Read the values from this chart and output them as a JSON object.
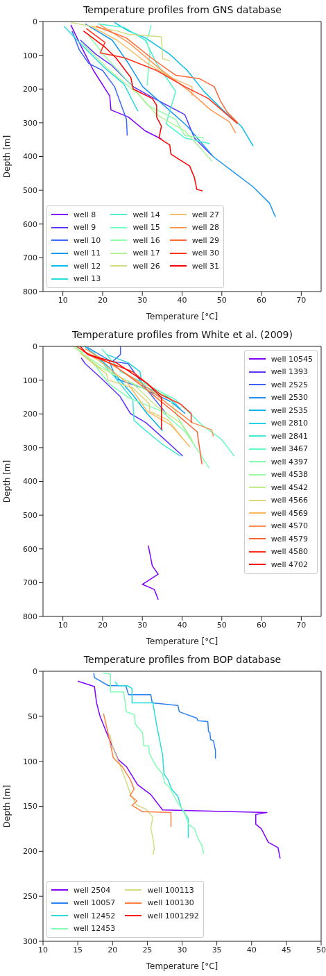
{
  "chart_data": [
    {
      "type": "line",
      "title": "Temperature profiles from GNS database",
      "xlabel": "Temperature [°C]",
      "ylabel": "Depth [m]",
      "xlim": [
        5,
        75
      ],
      "xticks": [
        10,
        20,
        30,
        40,
        50,
        60,
        70
      ],
      "ylim": [
        800,
        0
      ],
      "yticks": [
        0,
        100,
        200,
        300,
        400,
        500,
        600,
        700,
        800
      ],
      "legend": "bottom left",
      "line_style": "solid",
      "series": [
        {
          "name": "well 8",
          "color": "#8000ff",
          "x": [
            12.0,
            14.7,
            17.7,
            21.8,
            22.1,
            26.5,
            30.7,
            34.8
          ],
          "values": [
            10,
            76,
            145,
            221,
            262,
            283,
            324,
            348
          ]
        },
        {
          "name": "well 9",
          "color": "#5e35fe",
          "x": [
            14.4,
            18.3,
            22.4,
            27.7,
            33.0,
            40.7,
            43.1,
            47.5
          ],
          "values": [
            55,
            97,
            131,
            193,
            228,
            276,
            345,
            397
          ]
        },
        {
          "name": "well 10",
          "color": "#3b68f9",
          "x": [
            12.3,
            14.1,
            16.5,
            20.0,
            23.0,
            26.0,
            26.2
          ],
          "values": [
            28,
            83,
            124,
            145,
            193,
            290,
            338
          ]
        },
        {
          "name": "well 11",
          "color": "#1996f3",
          "x": [
            15.6,
            22.4,
            26.5,
            30.1,
            35.4,
            41.3,
            47.8,
            53.2,
            57.9,
            62.0,
            63.5
          ],
          "values": [
            7,
            55,
            124,
            193,
            248,
            310,
            400,
            448,
            490,
            538,
            579
          ]
        },
        {
          "name": "well 12",
          "color": "#08bde9",
          "x": [
            23.0,
            26.5,
            30.7,
            36.9,
            41.3,
            45.5,
            50.2,
            54.9,
            57.9
          ],
          "values": [
            3,
            28,
            48,
            97,
            145,
            207,
            262,
            310,
            369
          ]
        },
        {
          "name": "well 13",
          "color": "#2adddd",
          "x": [
            10.3,
            14.7,
            20.6,
            25.4,
            28.9
          ],
          "values": [
            14,
            69,
            138,
            186,
            266
          ]
        },
        {
          "name": "well 14",
          "color": "#4cf2ce",
          "x": [
            18.8,
            25.4,
            30.7,
            33.6,
            36.0,
            38.4,
            36.0,
            40.7,
            47.0
          ],
          "values": [
            7,
            17,
            55,
            124,
            166,
            207,
            303,
            345,
            362
          ]
        },
        {
          "name": "well 15",
          "color": "#6efebe",
          "x": [
            32.2,
            31.6,
            31.0,
            31.9,
            31.2
          ],
          "values": [
            10,
            41,
            55,
            90,
            190
          ]
        },
        {
          "name": "well 16",
          "color": "#90feab",
          "x": [
            16.5,
            20.6,
            26.5,
            31.3,
            38.4,
            40.7,
            45.5
          ],
          "values": [
            41,
            103,
            179,
            248,
            290,
            338,
            345
          ]
        },
        {
          "name": "well 17",
          "color": "#b2f296",
          "x": [
            14.7,
            21.8,
            29.5,
            33.6,
            40.7,
            44.9,
            47.5
          ],
          "values": [
            62,
            145,
            221,
            276,
            324,
            379,
            414
          ]
        },
        {
          "name": "well 26",
          "color": "#d4dd80",
          "x": [
            12.0,
            23.6,
            26.5,
            34.8,
            35.1,
            36.9
          ],
          "values": [
            3,
            28,
            38,
            45,
            110,
            117
          ]
        },
        {
          "name": "well 27",
          "color": "#f6bd68",
          "x": [
            17.1,
            23.6,
            31.3,
            37.2,
            42.5,
            42.5
          ],
          "values": [
            14,
            55,
            124,
            166,
            193,
            221
          ]
        },
        {
          "name": "well 28",
          "color": "#ff964f",
          "x": [
            19.4,
            26.5,
            34.2,
            41.9,
            47.2,
            51.9,
            53.5
          ],
          "values": [
            10,
            62,
            138,
            207,
            262,
            297,
            331
          ]
        },
        {
          "name": "well 29",
          "color": "#ff6835",
          "x": [
            18.3,
            25.9,
            32.5,
            38.4,
            44.3,
            48.1,
            49.6,
            51.4,
            54.0
          ],
          "values": [
            14,
            48,
            110,
            159,
            169,
            193,
            234,
            269,
            300
          ]
        },
        {
          "name": "well 30",
          "color": "#ff351b",
          "x": [
            15.9,
            20.6,
            19.4,
            25.4,
            33.6,
            40.7,
            46.6,
            54.0
          ],
          "values": [
            21,
            62,
            93,
            107,
            145,
            193,
            228,
            303
          ]
        },
        {
          "name": "well 31",
          "color": "#ff0000",
          "x": [
            15.2,
            20.6,
            23.3,
            27.1,
            27.7,
            32.5,
            33.6,
            33.6,
            34.8,
            34.2,
            36.9,
            37.2,
            41.9,
            43.1,
            43.7,
            45.2
          ],
          "values": [
            28,
            76,
            107,
            166,
            200,
            228,
            248,
            283,
            310,
            345,
            366,
            393,
            428,
            462,
            497,
            502
          ]
        }
      ]
    },
    {
      "type": "line",
      "title": "Temperature profiles from White et al. (2009)",
      "xlabel": "Temperature [°C]",
      "ylabel": "Depth [m]",
      "xlim": [
        5,
        75
      ],
      "xticks": [
        10,
        20,
        30,
        40,
        50,
        60,
        70
      ],
      "ylim": [
        800,
        0
      ],
      "yticks": [
        0,
        100,
        200,
        300,
        400,
        500,
        600,
        700,
        800
      ],
      "legend": "top right",
      "line_style": "solid",
      "series": [
        {
          "name": "well 10545",
          "color": "#8000ff",
          "x": [
            31.5,
            32,
            32.5,
            34,
            30,
            33,
            34
          ],
          "values": [
            590,
            620,
            650,
            675,
            705,
            720,
            750
          ]
        },
        {
          "name": "well 1393",
          "color": "#6032fe",
          "x": [
            14.6,
            15.6,
            19.8,
            24.3,
            27.0,
            30.9,
            34.8,
            40.2
          ],
          "values": [
            34,
            51,
            96,
            147,
            199,
            226,
            267,
            325
          ]
        },
        {
          "name": "well 2525",
          "color": "#4062fa",
          "x": [
            24.5,
            24.5,
            22.5,
            26.4,
            30.6,
            36.0
          ],
          "values": [
            0,
            24,
            45,
            51,
            120,
            199
          ]
        },
        {
          "name": "well 2530",
          "color": "#208ef4",
          "x": [
            16.2,
            21.6,
            23.4,
            30.0,
            37.2,
            40.8
          ],
          "values": [
            3,
            41,
            96,
            123,
            164,
            199
          ]
        },
        {
          "name": "well 2535",
          "color": "#00b5eb",
          "x": [
            15.6,
            21.6,
            27.6,
            31.2,
            35.1
          ],
          "values": [
            0,
            62,
            144,
            199,
            250
          ]
        },
        {
          "name": "well 2810",
          "color": "#20d4e1",
          "x": [
            21.0,
            26.4,
            29.4,
            30.0,
            36.6,
            39.6
          ],
          "values": [
            24,
            48,
            75,
            116,
            151,
            185
          ]
        },
        {
          "name": "well 2841",
          "color": "#40ebd4",
          "x": [
            17.4,
            23.4,
            27.6,
            27.9,
            30.6,
            34.8,
            39.6
          ],
          "values": [
            14,
            96,
            158,
            219,
            247,
            288,
            325
          ]
        },
        {
          "name": "well 3467",
          "color": "#60fac5",
          "x": [
            19.8,
            24.6,
            30.6,
            38.4,
            45.0,
            49.8,
            51.6,
            53.1
          ],
          "values": [
            7,
            75,
            110,
            158,
            233,
            274,
            301,
            325
          ]
        },
        {
          "name": "well 4397",
          "color": "#80ffb4",
          "x": [
            13.2,
            18.0,
            21.6,
            26.4,
            34.8,
            40.8,
            44.4,
            46.8
          ],
          "values": [
            0,
            55,
            110,
            151,
            192,
            253,
            315,
            360
          ]
        },
        {
          "name": "well 4538",
          "color": "#a0faa2",
          "x": [
            15.6,
            22.8,
            31.2,
            36.6,
            39.0,
            42.0,
            43.2
          ],
          "values": [
            27,
            82,
            130,
            147,
            212,
            267,
            295
          ]
        },
        {
          "name": "well 4542",
          "color": "#c0eb8e",
          "x": [
            12.6,
            19.2,
            27.6,
            33.6,
            39.6,
            42.6
          ],
          "values": [
            0,
            62,
            110,
            178,
            226,
            281
          ]
        },
        {
          "name": "well 4566",
          "color": "#e0d478",
          "x": [
            14.4,
            21.0,
            21.3,
            27.6,
            31.8,
            31.8,
            36.6,
            40.2
          ],
          "values": [
            21,
            82,
            99,
            123,
            171,
            192,
            219,
            274
          ]
        },
        {
          "name": "well 4569",
          "color": "#ffb462",
          "x": [
            13.8,
            19.8,
            26.4,
            31.2,
            37.2,
            42.0
          ],
          "values": [
            3,
            48,
            110,
            192,
            233,
            298
          ]
        },
        {
          "name": "well 4570",
          "color": "#ff8e4a",
          "x": [
            15.6,
            23.4,
            30.6,
            37.2,
            42.6,
            47.4,
            47.9
          ],
          "values": [
            7,
            62,
            116,
            178,
            226,
            247,
            267
          ]
        },
        {
          "name": "well 4579",
          "color": "#ff6232",
          "x": [
            15.0,
            22.8,
            30.6,
            38.4,
            43.8,
            45.0
          ],
          "values": [
            14,
            55,
            123,
            199,
            253,
            349
          ]
        },
        {
          "name": "well 4580",
          "color": "#ff3219",
          "x": [
            13.5,
            16.8,
            27.6,
            34.8,
            39.6,
            42.3,
            42.3
          ],
          "values": [
            0,
            27,
            75,
            144,
            171,
            199,
            226
          ]
        },
        {
          "name": "well 4702",
          "color": "#ff0000",
          "x": [
            14.4,
            16.2,
            23.4,
            31.2,
            34.8,
            34.8
          ],
          "values": [
            0,
            24,
            48,
            110,
            151,
            247
          ]
        }
      ]
    },
    {
      "type": "line",
      "title": "Temperature profiles from BOP database",
      "xlabel": "Temperature [°C]",
      "ylabel": "Depth [m]",
      "xlim": [
        10,
        50
      ],
      "xticks": [
        10,
        15,
        20,
        25,
        30,
        35,
        40,
        45,
        50
      ],
      "ylim": [
        300,
        0
      ],
      "yticks": [
        0,
        50,
        100,
        150,
        200,
        250,
        300
      ],
      "legend": "bottom left",
      "line_style": "solid",
      "series": [
        {
          "name": "well 2504",
          "color": "#8000ff",
          "x": [
            15.0,
            17.4,
            17.7,
            18.2,
            19.4,
            20.8,
            22.0,
            23.6,
            25.5,
            27.2,
            42.2,
            40.6,
            40.6,
            41.4,
            42.4,
            43.8,
            44.1
          ],
          "values": [
            11,
            17,
            35,
            50,
            73,
            98,
            106,
            126,
            137,
            154,
            157,
            159,
            170,
            175,
            190,
            196,
            208
          ]
        },
        {
          "name": "well 10057",
          "color": "#2a80f6",
          "x": [
            17.3,
            17.4,
            19.4,
            21.9,
            22.3,
            25.5,
            25.7,
            29.4,
            29.6,
            32.1,
            32.3,
            33.7,
            33.8,
            34.0,
            34.1,
            34.5,
            34.8,
            34.8
          ],
          "values": [
            2,
            7,
            16,
            16,
            26,
            26,
            35,
            38,
            45,
            52,
            55,
            56,
            67,
            68,
            76,
            77,
            88,
            97
          ]
        },
        {
          "name": "well 12452",
          "color": "#2adddd",
          "x": [
            20.4,
            20.8,
            22.1,
            22.8,
            22.8,
            25.8,
            26.3,
            27.2,
            27.4,
            28.0,
            28.5,
            29.4,
            29.9,
            30.9,
            30.9
          ],
          "values": [
            12,
            16,
            16,
            19,
            35,
            35,
            58,
            93,
            114,
            121,
            131,
            139,
            152,
            164,
            185
          ]
        },
        {
          "name": "well 12453",
          "color": "#80ffb4",
          "x": [
            18.6,
            19.7,
            19.7,
            21.6,
            22.0,
            23.1,
            23.3,
            24.3,
            24.5,
            25.2,
            25.3,
            26.0,
            26.5,
            27.2,
            27.5,
            28.2,
            29.2,
            30.4,
            30.9,
            31.8,
            32.1,
            32.9,
            33.1
          ],
          "values": [
            2,
            3,
            23,
            23,
            45,
            48,
            59,
            68,
            83,
            83,
            91,
            102,
            108,
            114,
            124,
            129,
            144,
            157,
            170,
            175,
            182,
            195,
            203
          ]
        },
        {
          "name": "well 100113",
          "color": "#d4dd80",
          "x": [
            19.6,
            20.1,
            20.9,
            21.8,
            22.6,
            23.5,
            24.8,
            25.8,
            25.5,
            25.8,
            26.0,
            25.8
          ],
          "values": [
            70,
            86,
            101,
            119,
            137,
            149,
            153,
            162,
            175,
            185,
            197,
            204
          ]
        },
        {
          "name": "well 100130",
          "color": "#ff8042",
          "x": [
            18.7,
            19.4,
            20.1,
            21.4,
            22.6,
            23.1,
            22.5,
            23.5,
            22.8,
            24.3,
            28.4,
            28.4
          ],
          "values": [
            47,
            70,
            96,
            106,
            121,
            131,
            138,
            144,
            149,
            156,
            157,
            173
          ]
        },
        {
          "name": "well 1001292",
          "color": "#ff0000"
        }
      ]
    }
  ]
}
